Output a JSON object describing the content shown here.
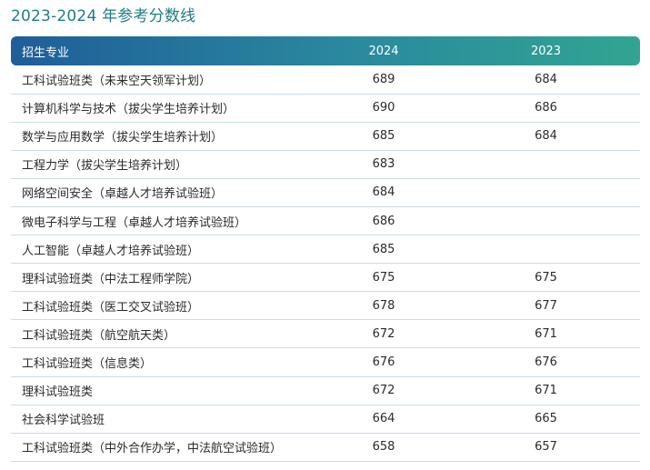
{
  "title": "2023-2024 年参考分数线",
  "table": {
    "headers": [
      "招生专业",
      "2024",
      "2023"
    ],
    "rows": [
      {
        "major": "工科试验班类（未来空天领军计划）",
        "y2024": "689",
        "y2023": "684"
      },
      {
        "major": "计算机科学与技术（拔尖学生培养计划）",
        "y2024": "690",
        "y2023": "686"
      },
      {
        "major": "数学与应用数学（拔尖学生培养计划）",
        "y2024": "685",
        "y2023": "684"
      },
      {
        "major": "工程力学（拔尖学生培养计划）",
        "y2024": "683",
        "y2023": ""
      },
      {
        "major": "网络空间安全（卓越人才培养试验班）",
        "y2024": "684",
        "y2023": ""
      },
      {
        "major": "微电子科学与工程（卓越人才培养试验班）",
        "y2024": "686",
        "y2023": ""
      },
      {
        "major": "人工智能（卓越人才培养试验班）",
        "y2024": "685",
        "y2023": ""
      },
      {
        "major": "理科试验班类（中法工程师学院）",
        "y2024": "675",
        "y2023": "675"
      },
      {
        "major": "工科试验班类（医工交叉试验班）",
        "y2024": "678",
        "y2023": "677"
      },
      {
        "major": "工科试验班类（航空航天类）",
        "y2024": "672",
        "y2023": "671"
      },
      {
        "major": "工科试验班类（信息类）",
        "y2024": "676",
        "y2023": "676"
      },
      {
        "major": "理科试验班类",
        "y2024": "672",
        "y2023": "671"
      },
      {
        "major": "社会科学试验班",
        "y2024": "664",
        "y2023": "665"
      },
      {
        "major": "工科试验班类（中外合作办学，中法航空试验班）",
        "y2024": "658",
        "y2023": "657"
      }
    ]
  },
  "colors": {
    "title": "#1f7d86",
    "header_start": "#1f5e99",
    "header_end": "#32a492",
    "row_divider": "#c8dcee"
  }
}
